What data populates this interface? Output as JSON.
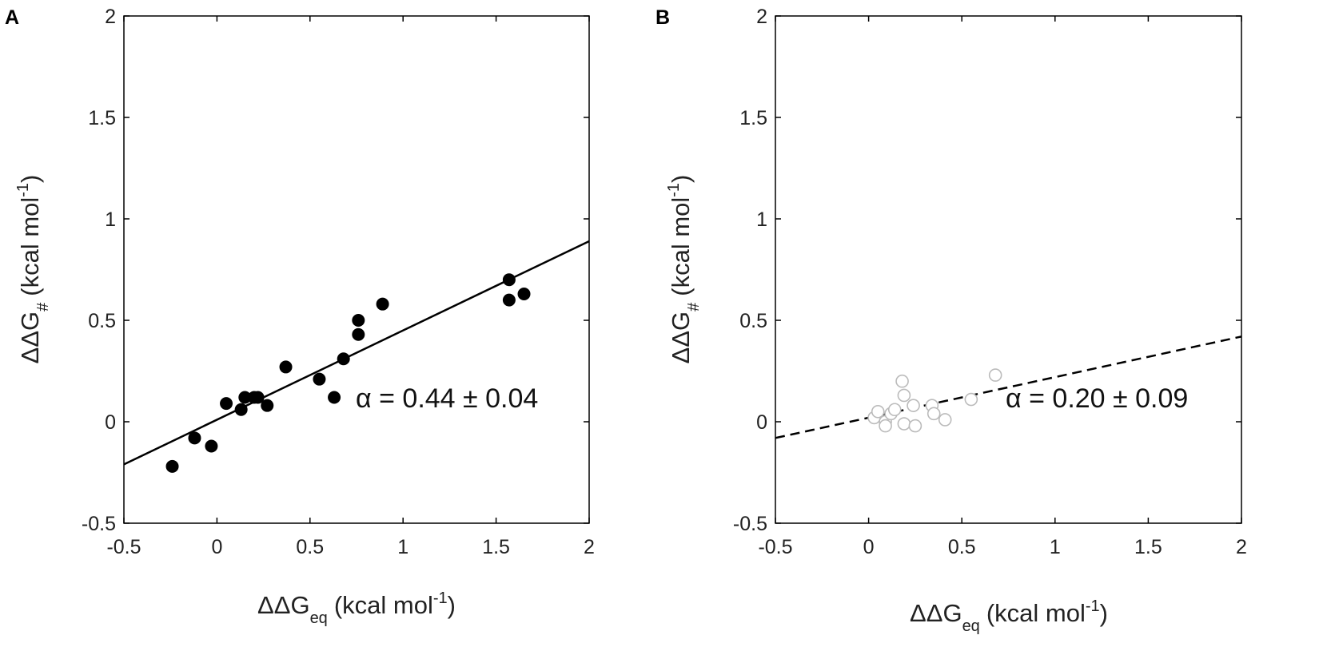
{
  "chart_data": [
    {
      "panel_label": "A",
      "type": "scatter",
      "xlim": [
        -0.5,
        2
      ],
      "ylim": [
        -0.5,
        2
      ],
      "xticks": [
        "-0.5",
        "0",
        "0.5",
        "1",
        "1.5",
        "2"
      ],
      "yticks": [
        "-0.5",
        "0",
        "0.5",
        "1",
        "1.5",
        "2"
      ],
      "xlabel": {
        "main": "ΔΔG",
        "sub": "eq",
        "unit": "(kcal mol",
        "exp": "-1",
        "close": ")"
      },
      "ylabel": {
        "main": "ΔΔG",
        "sub": "#",
        "unit": "(kcal mol",
        "exp": "-1",
        "close": ")"
      },
      "marker": "filled",
      "marker_color": "#000000",
      "points": [
        {
          "x": -0.24,
          "y": -0.22
        },
        {
          "x": -0.12,
          "y": -0.08
        },
        {
          "x": -0.03,
          "y": -0.12
        },
        {
          "x": 0.05,
          "y": 0.09
        },
        {
          "x": 0.13,
          "y": 0.06
        },
        {
          "x": 0.15,
          "y": 0.12
        },
        {
          "x": 0.2,
          "y": 0.12
        },
        {
          "x": 0.22,
          "y": 0.12
        },
        {
          "x": 0.27,
          "y": 0.08
        },
        {
          "x": 0.37,
          "y": 0.27
        },
        {
          "x": 0.55,
          "y": 0.21
        },
        {
          "x": 0.63,
          "y": 0.12
        },
        {
          "x": 0.68,
          "y": 0.31
        },
        {
          "x": 0.76,
          "y": 0.5
        },
        {
          "x": 0.76,
          "y": 0.43
        },
        {
          "x": 0.89,
          "y": 0.58
        },
        {
          "x": 1.57,
          "y": 0.7
        },
        {
          "x": 1.57,
          "y": 0.6
        },
        {
          "x": 1.65,
          "y": 0.63
        }
      ],
      "fit": {
        "slope": 0.44,
        "intercept": 0.01,
        "style": "solid"
      },
      "annotation": "α = 0.44 ± 0.04"
    },
    {
      "panel_label": "B",
      "type": "scatter",
      "xlim": [
        -0.5,
        2
      ],
      "ylim": [
        -0.5,
        2
      ],
      "xticks": [
        "-0.5",
        "0",
        "0.5",
        "1",
        "1.5",
        "2"
      ],
      "yticks": [
        "-0.5",
        "0",
        "0.5",
        "1",
        "1.5",
        "2"
      ],
      "xlabel": {
        "main": "ΔΔG",
        "sub": "eq",
        "unit": "(kcal mol",
        "exp": "-1",
        "close": ")"
      },
      "ylabel": {
        "main": "ΔΔG",
        "sub": "#",
        "unit": "(kcal mol",
        "exp": "-1",
        "close": ")"
      },
      "marker": "open",
      "marker_color": "#bbbbbb",
      "points": [
        {
          "x": 0.03,
          "y": 0.02
        },
        {
          "x": 0.05,
          "y": 0.05
        },
        {
          "x": 0.09,
          "y": 0.0
        },
        {
          "x": 0.09,
          "y": -0.02
        },
        {
          "x": 0.12,
          "y": 0.04
        },
        {
          "x": 0.14,
          "y": 0.06
        },
        {
          "x": 0.18,
          "y": 0.2
        },
        {
          "x": 0.19,
          "y": 0.13
        },
        {
          "x": 0.19,
          "y": -0.01
        },
        {
          "x": 0.24,
          "y": 0.08
        },
        {
          "x": 0.25,
          "y": -0.02
        },
        {
          "x": 0.34,
          "y": 0.08
        },
        {
          "x": 0.35,
          "y": 0.04
        },
        {
          "x": 0.41,
          "y": 0.01
        },
        {
          "x": 0.55,
          "y": 0.11
        },
        {
          "x": 0.68,
          "y": 0.23
        }
      ],
      "fit": {
        "slope": 0.2,
        "intercept": 0.02,
        "style": "dashed"
      },
      "annotation": "α = 0.20 ± 0.09"
    }
  ]
}
